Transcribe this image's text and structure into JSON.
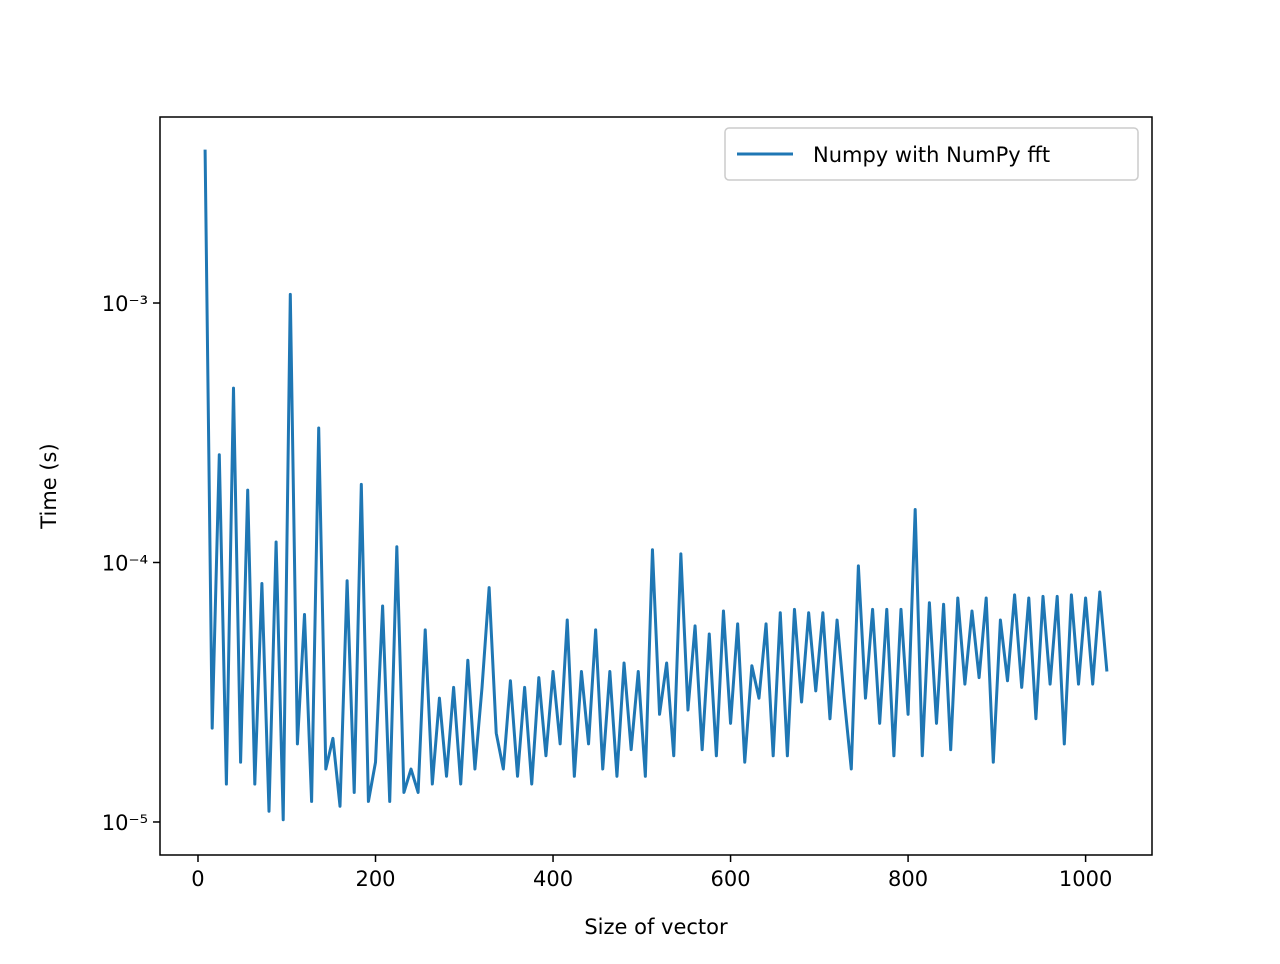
{
  "chart_data": {
    "type": "line",
    "xlabel": "Size of vector",
    "ylabel": "Time (s)",
    "x": [
      8,
      16,
      24,
      32,
      40,
      48,
      56,
      64,
      72,
      80,
      88,
      96,
      104,
      112,
      120,
      128,
      136,
      144,
      152,
      160,
      168,
      176,
      184,
      192,
      200,
      208,
      216,
      224,
      232,
      240,
      248,
      256,
      264,
      272,
      280,
      288,
      296,
      304,
      312,
      320,
      328,
      336,
      344,
      352,
      360,
      368,
      376,
      384,
      392,
      400,
      408,
      416,
      424,
      432,
      440,
      448,
      456,
      464,
      472,
      480,
      488,
      496,
      504,
      512,
      520,
      528,
      536,
      544,
      552,
      560,
      568,
      576,
      584,
      592,
      600,
      608,
      616,
      624,
      632,
      640,
      648,
      656,
      664,
      672,
      680,
      688,
      696,
      704,
      712,
      720,
      728,
      736,
      744,
      752,
      760,
      768,
      776,
      784,
      792,
      800,
      808,
      816,
      824,
      832,
      840,
      848,
      856,
      864,
      872,
      880,
      888,
      896,
      904,
      912,
      920,
      928,
      936,
      944,
      952,
      960,
      968,
      976,
      984,
      992,
      1000,
      1008,
      1016,
      1024
    ],
    "series": [
      {
        "name": "Numpy with NumPy fft",
        "color": "#1f77b4",
        "values": [
          0.0039,
          2.3e-05,
          0.00026,
          1.4e-05,
          0.00047,
          1.7e-05,
          0.00019,
          1.4e-05,
          8.3e-05,
          1.1e-05,
          0.00012,
          1.02e-05,
          0.00108,
          2e-05,
          6.3e-05,
          1.2e-05,
          0.00033,
          1.6e-05,
          2.1e-05,
          1.15e-05,
          8.5e-05,
          1.3e-05,
          0.0002,
          1.2e-05,
          1.7e-05,
          6.8e-05,
          1.2e-05,
          0.000115,
          1.3e-05,
          1.6e-05,
          1.3e-05,
          5.5e-05,
          1.4e-05,
          3e-05,
          1.5e-05,
          3.3e-05,
          1.4e-05,
          4.2e-05,
          1.6e-05,
          3.3e-05,
          8e-05,
          2.2e-05,
          1.6e-05,
          3.5e-05,
          1.5e-05,
          3.3e-05,
          1.4e-05,
          3.6e-05,
          1.8e-05,
          3.8e-05,
          2e-05,
          6e-05,
          1.5e-05,
          3.8e-05,
          2e-05,
          5.5e-05,
          1.6e-05,
          3.8e-05,
          1.5e-05,
          4.1e-05,
          1.9e-05,
          3.8e-05,
          1.5e-05,
          0.000112,
          2.6e-05,
          4.1e-05,
          1.8e-05,
          0.000108,
          2.7e-05,
          5.7e-05,
          1.9e-05,
          5.3e-05,
          1.8e-05,
          6.5e-05,
          2.4e-05,
          5.8e-05,
          1.7e-05,
          4e-05,
          3e-05,
          5.8e-05,
          1.8e-05,
          6.4e-05,
          1.8e-05,
          6.6e-05,
          2.9e-05,
          6.4e-05,
          3.2e-05,
          6.4e-05,
          2.5e-05,
          6e-05,
          3e-05,
          1.6e-05,
          9.7e-05,
          3e-05,
          6.6e-05,
          2.4e-05,
          6.6e-05,
          1.8e-05,
          6.6e-05,
          2.6e-05,
          0.00016,
          1.8e-05,
          7e-05,
          2.4e-05,
          6.9e-05,
          1.9e-05,
          7.3e-05,
          3.4e-05,
          6.5e-05,
          3.6e-05,
          7.3e-05,
          1.7e-05,
          6e-05,
          3.5e-05,
          7.5e-05,
          3.3e-05,
          7.3e-05,
          2.5e-05,
          7.4e-05,
          3.4e-05,
          7.4e-05,
          2e-05,
          7.5e-05,
          3.4e-05,
          7.3e-05,
          3.4e-05,
          7.7e-05,
          3.8e-05
        ]
      }
    ],
    "xlim": [
      -42.8,
      1074.8
    ],
    "xticks": [
      0,
      200,
      400,
      600,
      800,
      1000
    ],
    "ylim": [
      7.46e-06,
      0.00521
    ],
    "ylog": true,
    "yticks": [
      {
        "value": 1e-05,
        "label": "10⁻⁵"
      },
      {
        "value": 0.0001,
        "label": "10⁻⁴"
      },
      {
        "value": 0.001,
        "label": "10⁻³"
      }
    ],
    "legend": "upper right",
    "grid": false
  }
}
